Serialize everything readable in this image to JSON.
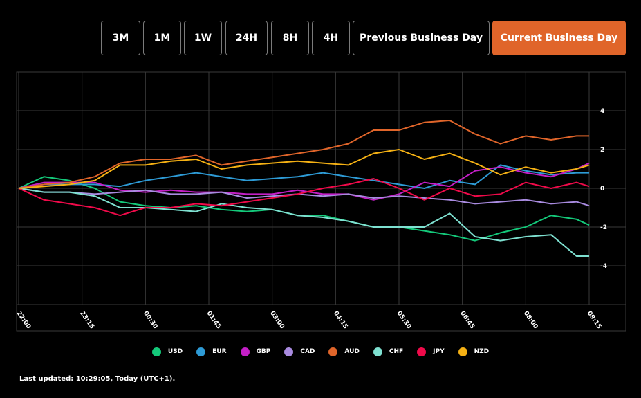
{
  "toolbar": {
    "buttons": [
      {
        "label": "3M",
        "active": false
      },
      {
        "label": "1M",
        "active": false
      },
      {
        "label": "1W",
        "active": false
      },
      {
        "label": "24H",
        "active": false
      },
      {
        "label": "8H",
        "active": false
      },
      {
        "label": "4H",
        "active": false
      },
      {
        "label": "Previous Business Day",
        "active": false
      },
      {
        "label": "Current Business Day",
        "active": true
      }
    ]
  },
  "colors": {
    "background": "#000000",
    "active_button": "#e0652a",
    "grid": "#3a3a3a"
  },
  "footer": {
    "last_updated": "Last updated: 10:29:05, Today (UTC+1)."
  },
  "chart_data": {
    "type": "line",
    "title": "",
    "xlabel": "",
    "ylabel": "",
    "x_ticks": [
      "22:00",
      "23:15",
      "00:30",
      "01:45",
      "03:00",
      "04:15",
      "05:30",
      "06:45",
      "08:00",
      "09:15"
    ],
    "y_ticks": [
      4,
      2,
      0,
      -2,
      -4
    ],
    "ylim": [
      -6,
      6
    ],
    "grid": true,
    "legend_position": "bottom",
    "x_times": [
      "22:00",
      "22:30",
      "23:00",
      "23:30",
      "00:00",
      "00:30",
      "01:00",
      "01:30",
      "02:00",
      "02:30",
      "03:00",
      "03:30",
      "04:00",
      "04:30",
      "05:00",
      "05:30",
      "06:00",
      "06:30",
      "07:00",
      "07:30",
      "08:00",
      "08:30",
      "09:00",
      "09:15"
    ],
    "series": [
      {
        "name": "USD",
        "color": "#14c97a",
        "values": [
          0,
          0.6,
          0.4,
          0,
          -0.7,
          -0.9,
          -1.0,
          -0.9,
          -1.1,
          -1.2,
          -1.1,
          -1.4,
          -1.4,
          -1.7,
          -2.0,
          -2.0,
          -2.2,
          -2.4,
          -2.7,
          -2.3,
          -2.0,
          -1.4,
          -1.6,
          -1.9
        ]
      },
      {
        "name": "EUR",
        "color": "#2e9bd6",
        "values": [
          0,
          0.2,
          0.2,
          0.2,
          0.1,
          0.4,
          0.6,
          0.8,
          0.6,
          0.4,
          0.5,
          0.6,
          0.8,
          0.6,
          0.4,
          0.2,
          0.0,
          0.4,
          0.2,
          1.2,
          0.9,
          0.7,
          0.8,
          0.8
        ]
      },
      {
        "name": "GBP",
        "color": "#c41fc7",
        "values": [
          0,
          0.3,
          0.3,
          0.3,
          -0.1,
          -0.2,
          -0.1,
          -0.2,
          -0.2,
          -0.3,
          -0.3,
          -0.1,
          -0.3,
          -0.3,
          -0.6,
          -0.3,
          0.3,
          0.1,
          0.9,
          1.1,
          0.8,
          0.6,
          1.0,
          1.3
        ]
      },
      {
        "name": "CAD",
        "color": "#a98be0",
        "values": [
          0,
          -0.2,
          -0.2,
          -0.3,
          -0.2,
          -0.1,
          -0.3,
          -0.3,
          -0.2,
          -0.5,
          -0.4,
          -0.3,
          -0.4,
          -0.3,
          -0.5,
          -0.4,
          -0.5,
          -0.6,
          -0.8,
          -0.7,
          -0.6,
          -0.8,
          -0.7,
          -0.9
        ]
      },
      {
        "name": "AUD",
        "color": "#e0652a",
        "values": [
          0,
          0.2,
          0.3,
          0.6,
          1.3,
          1.5,
          1.5,
          1.7,
          1.2,
          1.4,
          1.6,
          1.8,
          2.0,
          2.3,
          3.0,
          3.0,
          3.4,
          3.5,
          2.8,
          2.3,
          2.7,
          2.5,
          2.7,
          2.7
        ]
      },
      {
        "name": "CHF",
        "color": "#7ee0d0",
        "values": [
          0,
          -0.2,
          -0.2,
          -0.4,
          -1.0,
          -1.0,
          -1.1,
          -1.2,
          -0.8,
          -1.0,
          -1.1,
          -1.4,
          -1.5,
          -1.7,
          -2.0,
          -2.0,
          -2.0,
          -1.3,
          -2.5,
          -2.7,
          -2.5,
          -2.4,
          -3.5,
          -3.5
        ]
      },
      {
        "name": "JPY",
        "color": "#f00a4a",
        "values": [
          0,
          -0.6,
          -0.8,
          -1.0,
          -1.4,
          -1.0,
          -1.0,
          -0.8,
          -0.9,
          -0.7,
          -0.5,
          -0.3,
          0.0,
          0.2,
          0.5,
          0.0,
          -0.6,
          0.0,
          -0.4,
          -0.3,
          0.3,
          0.0,
          0.3,
          0.1
        ]
      },
      {
        "name": "NZD",
        "color": "#f5b114",
        "values": [
          0,
          0.1,
          0.2,
          0.4,
          1.2,
          1.2,
          1.4,
          1.5,
          1.0,
          1.2,
          1.3,
          1.4,
          1.3,
          1.2,
          1.8,
          2.0,
          1.5,
          1.8,
          1.3,
          0.7,
          1.1,
          0.8,
          1.0,
          1.2
        ]
      }
    ]
  }
}
